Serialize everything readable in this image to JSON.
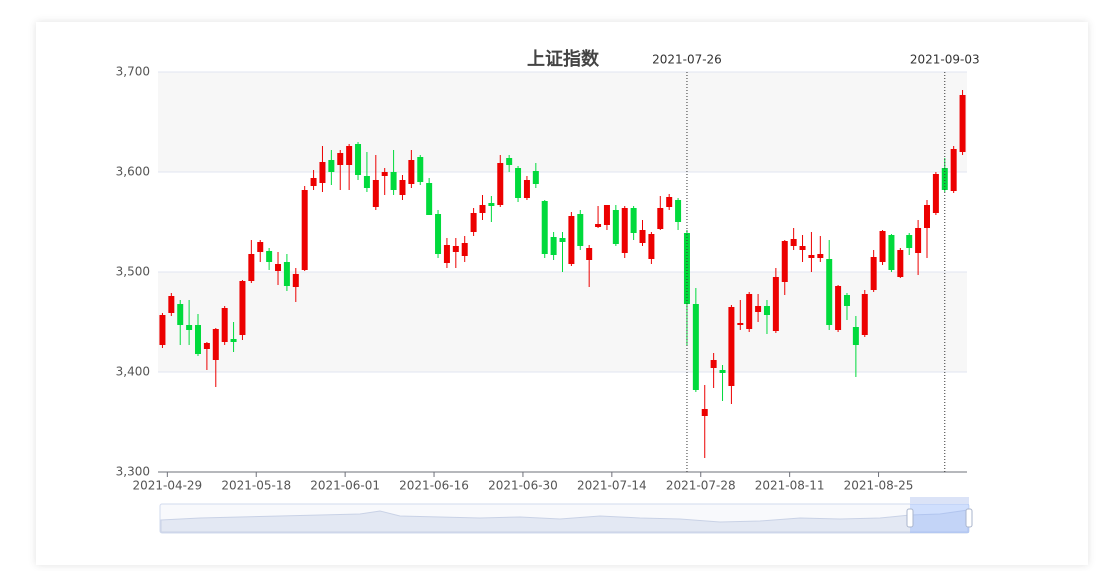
{
  "chart_data": {
    "type": "candlestick",
    "title": "上证指数",
    "categories": [
      null,
      "2021-04-29",
      null,
      null,
      null,
      null,
      null,
      null,
      null,
      null,
      null,
      "2021-05-18",
      null,
      null,
      null,
      null,
      null,
      null,
      null,
      null,
      null,
      "2021-06-01",
      null,
      null,
      null,
      null,
      null,
      null,
      null,
      null,
      null,
      "2021-06-16",
      null,
      null,
      null,
      null,
      null,
      null,
      null,
      null,
      null,
      "2021-06-30",
      null,
      null,
      null,
      null,
      null,
      null,
      null,
      null,
      null,
      "2021-07-14",
      null,
      null,
      null,
      null,
      null,
      null,
      null,
      "2021-07-26",
      null,
      "2021-07-28",
      null,
      null,
      null,
      null,
      null,
      null,
      null,
      null,
      null,
      "2021-08-11",
      null,
      null,
      null,
      null,
      null,
      null,
      null,
      null,
      null,
      "2021-08-25",
      null,
      null,
      null,
      null,
      null,
      null,
      "2021-09-03",
      null,
      null
    ],
    "x_markers": [
      59,
      88
    ],
    "series": [
      {
        "up_color": "#ec0000",
        "down_color": "#00da3c",
        "values": [
          [
            3427,
            3457,
            3424,
            3459
          ],
          [
            3459,
            3476,
            3456,
            3479
          ],
          [
            3468,
            3447,
            3427,
            3472
          ],
          [
            3447,
            3442,
            3427,
            3472
          ],
          [
            3447,
            3418,
            3416,
            3458
          ],
          [
            3423,
            3429,
            3402,
            3430
          ],
          [
            3412,
            3443,
            3385,
            3444
          ],
          [
            3430,
            3464,
            3427,
            3466
          ],
          [
            3433,
            3430,
            3420,
            3450
          ],
          [
            3437,
            3491,
            3432,
            3492
          ],
          [
            3491,
            3518,
            3489,
            3532
          ],
          [
            3520,
            3530,
            3510,
            3532
          ],
          [
            3521,
            3510,
            3502,
            3524
          ],
          [
            3501,
            3508,
            3487,
            3520
          ],
          [
            3510,
            3486,
            3481,
            3518
          ],
          [
            3485,
            3498,
            3470,
            3504
          ],
          [
            3502,
            3582,
            3501,
            3586
          ],
          [
            3586,
            3594,
            3582,
            3602
          ],
          [
            3589,
            3610,
            3580,
            3626
          ],
          [
            3612,
            3600,
            3587,
            3622
          ],
          [
            3607,
            3619,
            3582,
            3622
          ],
          [
            3607,
            3626,
            3582,
            3628
          ],
          [
            3628,
            3597,
            3592,
            3630
          ],
          [
            3596,
            3584,
            3580,
            3620
          ],
          [
            3565,
            3592,
            3562,
            3617
          ],
          [
            3596,
            3600,
            3577,
            3604
          ],
          [
            3600,
            3582,
            3577,
            3622
          ],
          [
            3577,
            3592,
            3572,
            3597
          ],
          [
            3588,
            3612,
            3584,
            3622
          ],
          [
            3615,
            3590,
            3587,
            3617
          ],
          [
            3589,
            3557,
            3557,
            3594
          ],
          [
            3558,
            3518,
            3514,
            3562
          ],
          [
            3509,
            3527,
            3504,
            3534
          ],
          [
            3520,
            3526,
            3504,
            3534
          ],
          [
            3516,
            3529,
            3510,
            3536
          ],
          [
            3540,
            3559,
            3536,
            3564
          ],
          [
            3559,
            3567,
            3552,
            3577
          ],
          [
            3569,
            3566,
            3550,
            3576
          ],
          [
            3567,
            3609,
            3565,
            3617
          ],
          [
            3614,
            3607,
            3600,
            3617
          ],
          [
            3604,
            3574,
            3570,
            3606
          ],
          [
            3574,
            3592,
            3572,
            3596
          ],
          [
            3601,
            3588,
            3584,
            3609
          ],
          [
            3571,
            3518,
            3514,
            3572
          ],
          [
            3535,
            3517,
            3512,
            3540
          ],
          [
            3534,
            3530,
            3500,
            3540
          ],
          [
            3508,
            3556,
            3506,
            3560
          ],
          [
            3558,
            3526,
            3522,
            3562
          ],
          [
            3512,
            3524,
            3485,
            3527
          ],
          [
            3545,
            3548,
            3544,
            3566
          ],
          [
            3547,
            3567,
            3542,
            3567
          ],
          [
            3562,
            3528,
            3526,
            3567
          ],
          [
            3519,
            3564,
            3514,
            3566
          ],
          [
            3564,
            3539,
            3532,
            3566
          ],
          [
            3529,
            3542,
            3526,
            3552
          ],
          [
            3513,
            3538,
            3508,
            3540
          ],
          [
            3543,
            3564,
            3542,
            3576
          ],
          [
            3565,
            3575,
            3562,
            3578
          ],
          [
            3572,
            3550,
            3542,
            3574
          ],
          [
            3539,
            3468,
            3426,
            3542
          ],
          [
            3468,
            3382,
            3380,
            3484
          ],
          [
            3356,
            3363,
            3314,
            3387
          ],
          [
            3404,
            3412,
            3384,
            3419
          ],
          [
            3402,
            3399,
            3371,
            3407
          ],
          [
            3386,
            3465,
            3368,
            3467
          ],
          [
            3447,
            3449,
            3442,
            3472
          ],
          [
            3443,
            3478,
            3440,
            3480
          ],
          [
            3460,
            3466,
            3450,
            3478
          ],
          [
            3466,
            3457,
            3438,
            3472
          ],
          [
            3441,
            3495,
            3439,
            3504
          ],
          [
            3490,
            3531,
            3477,
            3532
          ],
          [
            3526,
            3533,
            3522,
            3544
          ],
          [
            3522,
            3526,
            3510,
            3537
          ],
          [
            3514,
            3517,
            3500,
            3540
          ],
          [
            3514,
            3518,
            3510,
            3536
          ],
          [
            3513,
            3447,
            3442,
            3532
          ],
          [
            3442,
            3486,
            3440,
            3487
          ],
          [
            3477,
            3466,
            3452,
            3479
          ],
          [
            3445,
            3427,
            3395,
            3456
          ],
          [
            3437,
            3478,
            3435,
            3482
          ],
          [
            3482,
            3515,
            3480,
            3522
          ],
          [
            3510,
            3541,
            3507,
            3542
          ],
          [
            3537,
            3502,
            3500,
            3538
          ],
          [
            3495,
            3522,
            3494,
            3524
          ],
          [
            3537,
            3524,
            3517,
            3539
          ],
          [
            3519,
            3544,
            3497,
            3552
          ],
          [
            3544,
            3567,
            3514,
            3572
          ],
          [
            3559,
            3598,
            3557,
            3600
          ],
          [
            3604,
            3582,
            3580,
            3614
          ],
          [
            3581,
            3623,
            3579,
            3626
          ],
          [
            3620,
            3677,
            3617,
            3682
          ]
        ]
      }
    ],
    "ylim": [
      3300,
      3700
    ],
    "yticks": [
      {
        "value": 3300,
        "label": "3,300"
      },
      {
        "value": 3400,
        "label": "3,400"
      },
      {
        "value": 3500,
        "label": "3,500"
      },
      {
        "value": 3600,
        "label": "3,600"
      },
      {
        "value": 3700,
        "label": "3,700"
      }
    ],
    "grid": true
  }
}
